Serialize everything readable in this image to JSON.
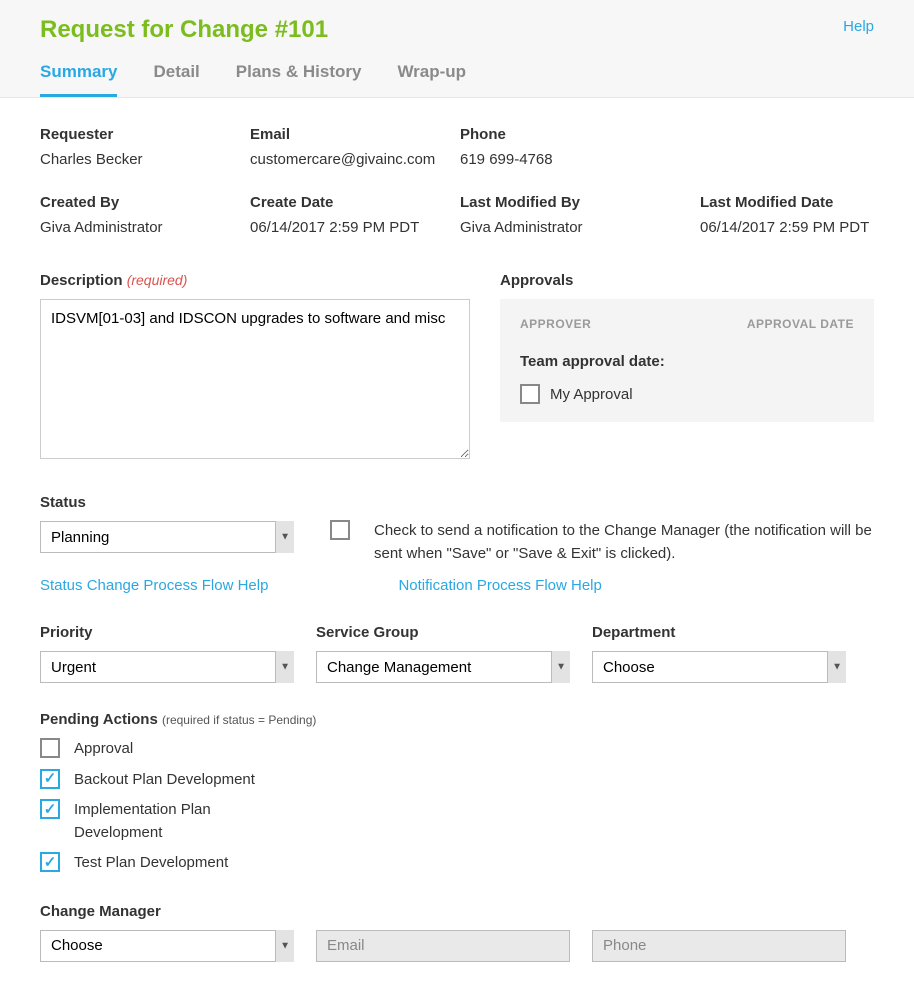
{
  "header": {
    "title": "Request for Change #101",
    "help": "Help",
    "tabs": [
      "Summary",
      "Detail",
      "Plans & History",
      "Wrap-up"
    ],
    "active_tab_index": 0
  },
  "meta": {
    "requester_label": "Requester",
    "requester": "Charles Becker",
    "email_label": "Email",
    "email": "customercare@givainc.com",
    "phone_label": "Phone",
    "phone": "619 699-4768",
    "created_by_label": "Created By",
    "created_by": "Giva Administrator",
    "create_date_label": "Create Date",
    "create_date": "06/14/2017 2:59 PM PDT",
    "last_modified_by_label": "Last Modified By",
    "last_modified_by": "Giva Administrator",
    "last_modified_date_label": "Last Modified Date",
    "last_modified_date": "06/14/2017 2:59 PM PDT"
  },
  "description": {
    "label": "Description",
    "required_tag": "(required)",
    "value": "IDSVM[01-03] and IDSCON upgrades to software and misc"
  },
  "approvals": {
    "label": "Approvals",
    "col_approver": "APPROVER",
    "col_date": "APPROVAL DATE",
    "team_label": "Team approval date:",
    "my_approval_label": "My Approval",
    "my_approval_checked": false
  },
  "status": {
    "label": "Status",
    "value": "Planning",
    "notify_checked": false,
    "notify_text": "Check to send a notification to the Change Manager (the notification will be sent when \"Save\" or \"Save & Exit\" is clicked).",
    "status_help_link": "Status Change Process Flow Help",
    "notify_help_link": "Notification Process Flow Help"
  },
  "priority": {
    "label": "Priority",
    "value": "Urgent"
  },
  "service_group": {
    "label": "Service Group",
    "value": "Change Management"
  },
  "department": {
    "label": "Department",
    "value": "Choose"
  },
  "pending": {
    "label": "Pending Actions",
    "sub": "(required if status = Pending)",
    "items": [
      {
        "label": "Approval",
        "checked": false
      },
      {
        "label": "Backout Plan Development",
        "checked": true
      },
      {
        "label": "Implementation Plan Development",
        "checked": true
      },
      {
        "label": "Test Plan Development",
        "checked": true
      }
    ]
  },
  "change_manager": {
    "label": "Change Manager",
    "value": "Choose",
    "email_placeholder": "Email",
    "phone_placeholder": "Phone"
  },
  "colors": {
    "title": "#7cbd1e",
    "link": "#2aa8e2",
    "required": "#d9534f",
    "header_bg": "#f7f7f7"
  }
}
